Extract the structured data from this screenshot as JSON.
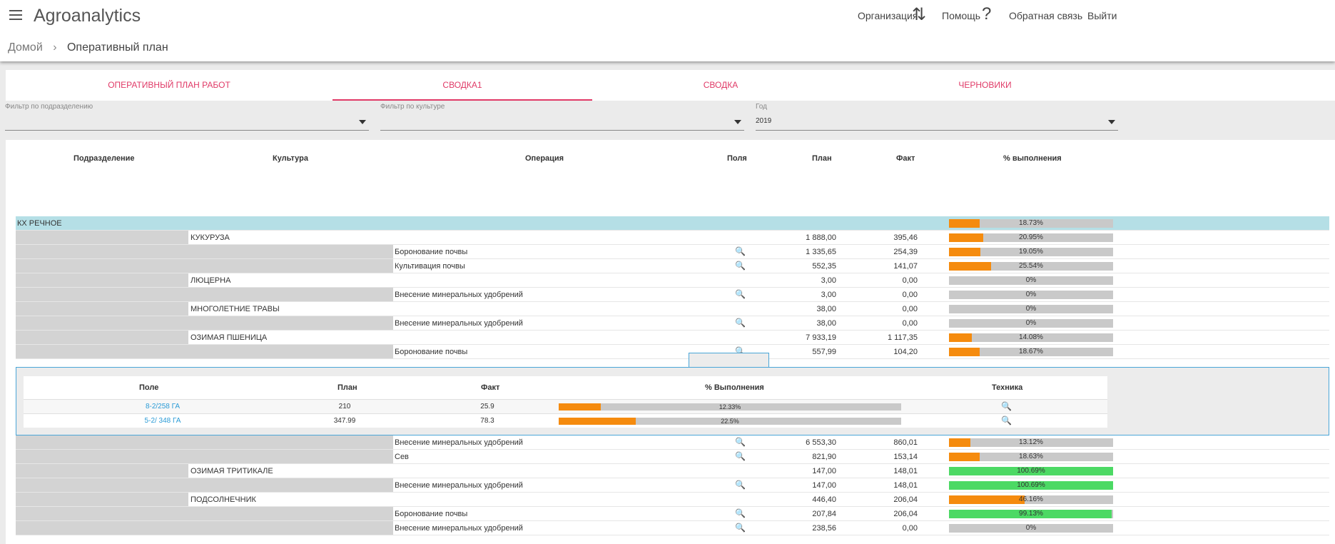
{
  "app": {
    "title": "Agroanalytics"
  },
  "nav": {
    "organization": "Организация",
    "help": "Помощь",
    "feedback": "Обратная связь",
    "logout": "Выйти"
  },
  "breadcrumb": {
    "home": "Домой",
    "current": "Оперативный план"
  },
  "tabs": [
    {
      "label": "ОПЕРАТИВНЫЙ ПЛАН РАБОТ",
      "active": false
    },
    {
      "label": "СВОДКА1",
      "active": true
    },
    {
      "label": "СВОДКА",
      "active": false
    },
    {
      "label": "ЧЕРНОВИКИ",
      "active": false
    }
  ],
  "filters": {
    "division": {
      "label": "Фильтр по подразделению",
      "value": ""
    },
    "culture": {
      "label": "Фильтр по культуре",
      "value": ""
    },
    "year": {
      "label": "Год",
      "value": "2019"
    }
  },
  "table": {
    "headers": {
      "division": "Подразделение",
      "culture": "Культура",
      "operation": "Операция",
      "fields": "Поля",
      "plan": "План",
      "fact": "Факт",
      "percent": "% выполнения"
    },
    "group": {
      "label": "КХ РЕЧНОЕ",
      "percent": "18.73%",
      "ratio": 0.1873
    },
    "rows_top": [
      {
        "culture": "КУКУРУЗА",
        "operation": "",
        "plan": "1 888,00",
        "fact": "395,46",
        "percent": "20.95%",
        "ratio": 0.2095,
        "color": "#f58b0e",
        "mag": false
      },
      {
        "culture": "",
        "operation": "Боронование почвы",
        "plan": "1 335,65",
        "fact": "254,39",
        "percent": "19.05%",
        "ratio": 0.1905,
        "color": "#f58b0e",
        "mag": true
      },
      {
        "culture": "",
        "operation": "Культивация почвы",
        "plan": "552,35",
        "fact": "141,07",
        "percent": "25.54%",
        "ratio": 0.2554,
        "color": "#f58b0e",
        "mag": true
      },
      {
        "culture": "ЛЮЦЕРНА",
        "operation": "",
        "plan": "3,00",
        "fact": "0,00",
        "percent": "0%",
        "ratio": 0,
        "color": "#f58b0e",
        "mag": false
      },
      {
        "culture": "",
        "operation": "Внесение минеральных удобрений",
        "plan": "3,00",
        "fact": "0,00",
        "percent": "0%",
        "ratio": 0,
        "color": "#f58b0e",
        "mag": true
      },
      {
        "culture": "МНОГОЛЕТНИЕ ТРАВЫ",
        "operation": "",
        "plan": "38,00",
        "fact": "0,00",
        "percent": "0%",
        "ratio": 0,
        "color": "#f58b0e",
        "mag": false
      },
      {
        "culture": "",
        "operation": "Внесение минеральных удобрений",
        "plan": "38,00",
        "fact": "0,00",
        "percent": "0%",
        "ratio": 0,
        "color": "#f58b0e",
        "mag": true
      },
      {
        "culture": "ОЗИМАЯ ПШЕНИЦА",
        "operation": "",
        "plan": "7 933,19",
        "fact": "1 117,35",
        "percent": "14.08%",
        "ratio": 0.1408,
        "color": "#f58b0e",
        "mag": false
      },
      {
        "culture": "",
        "operation": "Боронование почвы",
        "plan": "557,99",
        "fact": "104,20",
        "percent": "18.67%",
        "ratio": 0.1867,
        "color": "#f58b0e",
        "mag": true
      }
    ],
    "rows_bottom": [
      {
        "culture": "",
        "operation": "Внесение минеральных удобрений",
        "plan": "6 553,30",
        "fact": "860,01",
        "percent": "13.12%",
        "ratio": 0.1312,
        "color": "#f58b0e",
        "mag": true
      },
      {
        "culture": "",
        "operation": "Сев",
        "plan": "821,90",
        "fact": "153,14",
        "percent": "18.63%",
        "ratio": 0.1863,
        "color": "#f58b0e",
        "mag": true
      },
      {
        "culture": "ОЗИМАЯ ТРИТИКАЛЕ",
        "operation": "",
        "plan": "147,00",
        "fact": "148,01",
        "percent": "100.69%",
        "ratio": 1,
        "color": "#4cd964",
        "mag": false
      },
      {
        "culture": "",
        "operation": "Внесение минеральных удобрений",
        "plan": "147,00",
        "fact": "148,01",
        "percent": "100.69%",
        "ratio": 1,
        "color": "#4cd964",
        "mag": true
      },
      {
        "culture": "ПОДСОЛНЕЧНИК",
        "operation": "",
        "plan": "446,40",
        "fact": "206,04",
        "percent": "46.16%",
        "ratio": 0.4616,
        "color": "#f58b0e",
        "mag": false
      },
      {
        "culture": "",
        "operation": "Боронование почвы",
        "plan": "207,84",
        "fact": "206,04",
        "percent": "99.13%",
        "ratio": 0.9913,
        "color": "#4cd964",
        "mag": true
      },
      {
        "culture": "",
        "operation": "Внесение минеральных удобрений",
        "plan": "238,56",
        "fact": "0,00",
        "percent": "0%",
        "ratio": 0,
        "color": "#f58b0e",
        "mag": true
      }
    ]
  },
  "detail": {
    "headers": {
      "field": "Поле",
      "plan": "План",
      "fact": "Факт",
      "percent": "% Выполнения",
      "equipment": "Техника"
    },
    "rows": [
      {
        "field": "8-2/258 ГА",
        "plan": "210",
        "fact": "25.9",
        "percent": "12.33%",
        "ratio": 0.1233
      },
      {
        "field": "5-2/ 348 ГА",
        "plan": "347.99",
        "fact": "78.3",
        "percent": "22.5%",
        "ratio": 0.225
      }
    ]
  },
  "icons": {
    "menu": "menu-icon",
    "sync": "sync-icon",
    "help": "help-icon",
    "search": "search-icon",
    "chevron": "chevron-right-icon"
  }
}
